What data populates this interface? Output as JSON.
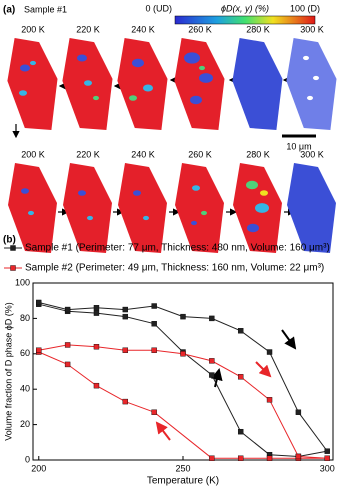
{
  "panel_a": {
    "label": "(a)",
    "sample": "Sample #1",
    "colorbar_min": "0 (UD)",
    "colorbar_title": "ϕD(x, y) (%)",
    "colorbar_max": "100 (D)",
    "row1_labels": [
      "200 K",
      "220 K",
      "240 K",
      "260 K",
      "280 K",
      "300 K"
    ],
    "row2_labels": [
      "200 K",
      "220 K",
      "240 K",
      "260 K",
      "280 K",
      "300 K"
    ],
    "scale_bar": "10 μm"
  },
  "chart_data": {
    "type": "line",
    "label": "(b)",
    "x_label": "Temperature (K)",
    "y_label": "Volume fraction of D phase ϕD (%)",
    "xlim": [
      198,
      302
    ],
    "xticks": [
      200,
      250,
      300
    ],
    "ylim": [
      0,
      100
    ],
    "yticks": [
      0,
      20,
      40,
      60,
      80,
      100
    ],
    "series": [
      {
        "name": "Sample #1 (Perimeter: 77 μm, Thickness: 480 nm, Volume: 160 μm³)",
        "color": "#222222",
        "x": [
          200,
          210,
          220,
          230,
          240,
          250,
          260,
          270,
          280,
          290,
          300,
          290,
          280,
          270,
          260,
          250,
          240,
          230,
          220,
          210,
          200
        ],
        "values": [
          88,
          84,
          83,
          81,
          77,
          61,
          48,
          16,
          3,
          2,
          5,
          27,
          61,
          73,
          80,
          81,
          87,
          85,
          86,
          85,
          89
        ]
      },
      {
        "name": "Sample #2 (Perimeter: 49 μm, Thickness: 160 nm, Volume: 22 μm³)",
        "color": "#e8262a",
        "x": [
          200,
          210,
          220,
          230,
          240,
          260,
          270,
          280,
          290,
          300,
          290,
          280,
          270,
          260,
          250,
          240,
          230,
          220,
          210,
          200
        ],
        "values": [
          61,
          54,
          42,
          33,
          27,
          1,
          1,
          1,
          1,
          1,
          2,
          34,
          47,
          56,
          60,
          62,
          62,
          64,
          65,
          62
        ]
      }
    ]
  }
}
